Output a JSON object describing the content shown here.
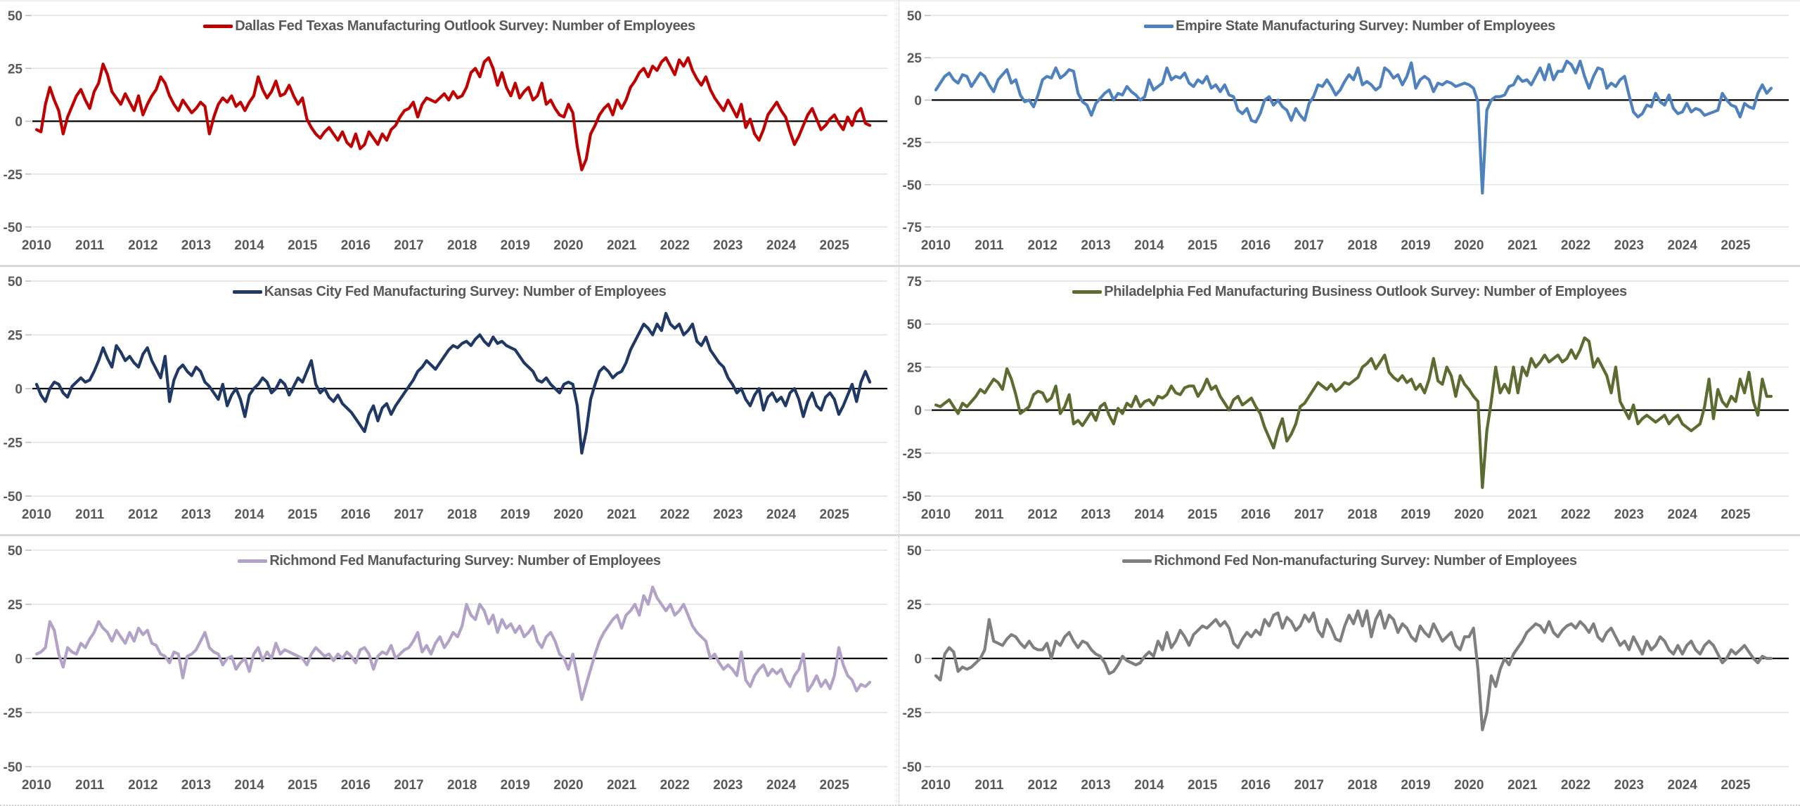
{
  "figure": {
    "description": "Six regional Federal Reserve survey panels, employment indexes, monthly, 2010 through 2025",
    "grid": "2 columns x 3 rows",
    "x_axis_years": [
      2010,
      2011,
      2012,
      2013,
      2014,
      2015,
      2016,
      2017,
      2018,
      2019,
      2020,
      2021,
      2022,
      2023,
      2024,
      2025
    ]
  },
  "styles": {
    "axis_text_color": "#595959",
    "grid_color": "#e2e2e2",
    "tick_color": "#bfbfbf",
    "zero_line_color": "#000000",
    "divider_color": "#d9d9d9",
    "background": "#ffffff"
  },
  "chart_data": [
    {
      "type": "line",
      "title": "Dallas Fed Texas Manufacturing Outlook Survey: Number of Employees",
      "color": "#C00000",
      "y_min": -50,
      "y_max": 50,
      "y_tick_step": 25,
      "y_tick_labels": [
        "50",
        "25",
        "0",
        "-25",
        "-50"
      ],
      "x_start_year": 2010,
      "x_end_year": 2025,
      "frequency": "monthly",
      "legend_position": "top-center",
      "grid": "horizontal-light",
      "values": [
        -4,
        -5,
        8,
        16,
        10,
        5,
        -6,
        2,
        7,
        12,
        15,
        10,
        6,
        14,
        18,
        27,
        22,
        14,
        11,
        8,
        13,
        9,
        5,
        12,
        3,
        8,
        12,
        15,
        21,
        18,
        12,
        8,
        5,
        10,
        7,
        4,
        6,
        9,
        7,
        -6,
        2,
        8,
        11,
        9,
        12,
        7,
        9,
        5,
        9,
        12,
        21,
        15,
        11,
        14,
        19,
        12,
        13,
        17,
        12,
        8,
        11,
        1,
        -3,
        -6,
        -8,
        -5,
        -3,
        -6,
        -9,
        -5,
        -10,
        -12,
        -6,
        -13,
        -11,
        -5,
        -8,
        -11,
        -6,
        -9,
        -4,
        -2,
        2,
        5,
        6,
        9,
        2,
        8,
        11,
        10,
        9,
        11,
        13,
        10,
        14,
        11,
        12,
        16,
        23,
        25,
        21,
        28,
        30,
        25,
        17,
        23,
        16,
        12,
        18,
        11,
        14,
        16,
        10,
        12,
        18,
        8,
        10,
        6,
        3,
        2,
        8,
        4,
        -12,
        -23,
        -18,
        -6,
        -2,
        3,
        6,
        8,
        3,
        10,
        6,
        10,
        16,
        19,
        23,
        25,
        21,
        26,
        24,
        28,
        30,
        26,
        22,
        29,
        26,
        30,
        24,
        20,
        17,
        21,
        15,
        11,
        8,
        5,
        10,
        6,
        2,
        8,
        -3,
        1,
        -6,
        -9,
        -4,
        3,
        6,
        9,
        5,
        2,
        -5,
        -11,
        -7,
        -2,
        3,
        6,
        1,
        -4,
        -2,
        1,
        3,
        -1,
        -4,
        2,
        -2,
        4,
        6,
        -1,
        -2
      ]
    },
    {
      "type": "line",
      "title": "Empire State Manufacturing Survey: Number of Employees",
      "color": "#4E81BD",
      "y_min": -75,
      "y_max": 50,
      "y_tick_step": 25,
      "y_tick_labels": [
        "50",
        "25",
        "0",
        "-25",
        "-50",
        "-75"
      ],
      "x_start_year": 2010,
      "x_end_year": 2025,
      "frequency": "monthly",
      "legend_position": "top-center",
      "grid": "horizontal-light",
      "values": [
        6,
        10,
        14,
        16,
        12,
        10,
        15,
        14,
        8,
        12,
        16,
        14,
        9,
        5,
        12,
        15,
        18,
        10,
        12,
        3,
        -1,
        0,
        -4,
        3,
        12,
        14,
        13,
        19,
        13,
        15,
        18,
        17,
        4,
        -1,
        -3,
        -9,
        -2,
        1,
        4,
        6,
        0,
        4,
        3,
        8,
        5,
        3,
        0,
        2,
        12,
        6,
        8,
        10,
        19,
        12,
        14,
        13,
        16,
        10,
        8,
        12,
        10,
        14,
        7,
        9,
        5,
        9,
        3,
        2,
        -6,
        -8,
        -5,
        -12,
        -13,
        -8,
        0,
        2,
        -3,
        0,
        -4,
        -6,
        -12,
        -5,
        -9,
        -12,
        -2,
        2,
        9,
        8,
        12,
        8,
        3,
        6,
        11,
        15,
        12,
        19,
        9,
        11,
        9,
        6,
        8,
        19,
        17,
        13,
        15,
        9,
        14,
        22,
        7,
        12,
        14,
        12,
        5,
        10,
        9,
        11,
        10,
        8,
        9,
        10,
        9,
        7,
        -1,
        -55,
        -6,
        0,
        2,
        2,
        3,
        8,
        9,
        14,
        11,
        12,
        9,
        14,
        19,
        12,
        21,
        12,
        17,
        17,
        23,
        21,
        16,
        23,
        14,
        7,
        14,
        19,
        18,
        7,
        10,
        8,
        12,
        14,
        3,
        -7,
        -10,
        -8,
        -3,
        -4,
        4,
        -1,
        -3,
        3,
        -5,
        -8,
        -7,
        -2,
        -7,
        -5,
        -6,
        -9,
        -8,
        -7,
        -6,
        4,
        0,
        -3,
        -4,
        -10,
        -2,
        -4,
        -5,
        4,
        9,
        4,
        7
      ]
    },
    {
      "type": "line",
      "title": "Kansas City Fed Manufacturing Survey: Number of Employees",
      "color": "#1F3864",
      "y_min": -50,
      "y_max": 50,
      "y_tick_step": 25,
      "y_tick_labels": [
        "50",
        "25",
        "0",
        "-25",
        "-50"
      ],
      "x_start_year": 2010,
      "x_end_year": 2025,
      "frequency": "monthly",
      "legend_position": "top-center",
      "grid": "horizontal-light",
      "values": [
        2,
        -3,
        -6,
        0,
        3,
        2,
        -2,
        -4,
        1,
        3,
        5,
        3,
        4,
        8,
        13,
        19,
        14,
        10,
        20,
        17,
        13,
        15,
        12,
        10,
        16,
        19,
        13,
        9,
        5,
        15,
        -6,
        4,
        9,
        11,
        8,
        6,
        10,
        8,
        3,
        1,
        -2,
        -5,
        2,
        -8,
        -3,
        0,
        -5,
        -13,
        -3,
        0,
        2,
        5,
        3,
        -2,
        0,
        4,
        2,
        -3,
        1,
        5,
        3,
        8,
        13,
        2,
        -2,
        0,
        -4,
        -6,
        -3,
        -7,
        -9,
        -11,
        -14,
        -17,
        -20,
        -12,
        -8,
        -15,
        -9,
        -7,
        -12,
        -8,
        -5,
        -2,
        1,
        4,
        8,
        10,
        13,
        11,
        9,
        12,
        15,
        18,
        20,
        19,
        21,
        22,
        20,
        23,
        25,
        22,
        20,
        24,
        21,
        22,
        20,
        19,
        18,
        15,
        12,
        10,
        8,
        4,
        3,
        5,
        2,
        0,
        -2,
        2,
        3,
        2,
        -8,
        -30,
        -20,
        -5,
        2,
        8,
        10,
        8,
        5,
        7,
        8,
        12,
        18,
        22,
        26,
        30,
        28,
        25,
        30,
        27,
        35,
        30,
        28,
        30,
        25,
        27,
        30,
        22,
        20,
        24,
        18,
        15,
        12,
        10,
        5,
        2,
        -2,
        0,
        -5,
        -8,
        -3,
        0,
        -10,
        -4,
        -2,
        -6,
        -4,
        -8,
        -2,
        0,
        -5,
        -13,
        -6,
        -2,
        -8,
        -10,
        -4,
        -2,
        -5,
        -12,
        -8,
        -3,
        2,
        -6,
        3,
        8,
        3
      ]
    },
    {
      "type": "line",
      "title": "Philadelphia Fed Manufacturing Business Outlook Survey: Number of Employees",
      "color": "#5C6B30",
      "y_min": -50,
      "y_max": 75,
      "y_tick_step": 25,
      "y_tick_labels": [
        "75",
        "50",
        "25",
        "0",
        "-25",
        "-50"
      ],
      "x_start_year": 2010,
      "x_end_year": 2025,
      "frequency": "monthly",
      "legend_position": "top-center",
      "grid": "horizontal-light",
      "values": [
        3,
        2,
        4,
        6,
        2,
        -2,
        4,
        2,
        5,
        8,
        12,
        10,
        14,
        18,
        16,
        12,
        24,
        18,
        9,
        -2,
        0,
        2,
        9,
        11,
        10,
        5,
        7,
        14,
        -2,
        2,
        9,
        -8,
        -6,
        -9,
        -5,
        -1,
        -6,
        2,
        4,
        -3,
        -8,
        1,
        -2,
        4,
        2,
        8,
        2,
        5,
        6,
        3,
        8,
        7,
        9,
        14,
        10,
        9,
        13,
        14,
        14,
        8,
        12,
        18,
        12,
        14,
        8,
        4,
        0,
        6,
        8,
        3,
        5,
        7,
        2,
        -2,
        -10,
        -16,
        -22,
        -12,
        -5,
        -18,
        -14,
        -8,
        2,
        4,
        8,
        12,
        16,
        14,
        12,
        15,
        11,
        13,
        16,
        15,
        17,
        19,
        25,
        27,
        30,
        24,
        28,
        32,
        22,
        19,
        17,
        20,
        16,
        18,
        12,
        15,
        10,
        18,
        30,
        17,
        15,
        25,
        20,
        8,
        20,
        15,
        12,
        8,
        5,
        -45,
        -12,
        5,
        25,
        10,
        15,
        10,
        25,
        10,
        25,
        20,
        30,
        25,
        28,
        32,
        28,
        30,
        32,
        28,
        30,
        35,
        30,
        35,
        42,
        40,
        25,
        30,
        25,
        20,
        10,
        25,
        5,
        0,
        -5,
        3,
        -8,
        -5,
        -3,
        -5,
        -7,
        -5,
        -3,
        -8,
        -5,
        -3,
        -8,
        -10,
        -12,
        -10,
        -8,
        2,
        18,
        -5,
        12,
        5,
        2,
        8,
        5,
        18,
        10,
        22,
        5,
        -3,
        18,
        8,
        8
      ]
    },
    {
      "type": "line",
      "title": "Richmond Fed Manufacturing Survey: Number of Employees",
      "color": "#B3A2C7",
      "y_min": -50,
      "y_max": 50,
      "y_tick_step": 25,
      "y_tick_labels": [
        "50",
        "25",
        "0",
        "-25",
        "-50"
      ],
      "x_start_year": 2010,
      "x_end_year": 2025,
      "frequency": "monthly",
      "legend_position": "top-center",
      "grid": "horizontal-light",
      "values": [
        2,
        3,
        5,
        17,
        13,
        2,
        -4,
        5,
        3,
        2,
        7,
        5,
        9,
        12,
        17,
        14,
        12,
        8,
        13,
        10,
        7,
        12,
        8,
        14,
        11,
        13,
        7,
        6,
        2,
        1,
        -2,
        3,
        2,
        -9,
        1,
        2,
        4,
        8,
        12,
        5,
        3,
        2,
        -3,
        0,
        1,
        -5,
        -2,
        0,
        -6,
        2,
        5,
        -1,
        3,
        0,
        7,
        2,
        4,
        3,
        2,
        1,
        0,
        -3,
        2,
        5,
        3,
        1,
        2,
        -1,
        2,
        0,
        3,
        1,
        -2,
        4,
        5,
        2,
        -5,
        1,
        3,
        2,
        6,
        0,
        2,
        4,
        5,
        8,
        12,
        3,
        6,
        2,
        7,
        10,
        5,
        8,
        12,
        10,
        15,
        25,
        20,
        18,
        25,
        22,
        16,
        20,
        12,
        18,
        14,
        16,
        12,
        15,
        10,
        12,
        15,
        8,
        5,
        10,
        12,
        8,
        2,
        0,
        -5,
        2,
        -8,
        -19,
        -12,
        -5,
        2,
        8,
        12,
        15,
        18,
        20,
        14,
        20,
        22,
        25,
        20,
        29,
        25,
        33,
        28,
        25,
        22,
        25,
        20,
        22,
        25,
        20,
        15,
        12,
        10,
        8,
        0,
        2,
        -2,
        -5,
        -3,
        -5,
        -8,
        3,
        -10,
        -13,
        -8,
        -5,
        -3,
        -8,
        -5,
        -7,
        -5,
        -10,
        -13,
        -8,
        -5,
        2,
        -15,
        -12,
        -8,
        -13,
        -10,
        -14,
        -8,
        5,
        -3,
        -8,
        -10,
        -15,
        -12,
        -13,
        -11
      ]
    },
    {
      "type": "line",
      "title": "Richmond Fed Non-manufacturing Survey: Number of Employees",
      "color": "#7F7F7F",
      "y_min": -50,
      "y_max": 50,
      "y_tick_step": 25,
      "y_tick_labels": [
        "50",
        "25",
        "0",
        "-25",
        "-50"
      ],
      "x_start_year": 2010,
      "x_end_year": 2025,
      "frequency": "monthly",
      "legend_position": "top-center",
      "grid": "horizontal-light",
      "values": [
        -8,
        -10,
        2,
        5,
        3,
        -6,
        -4,
        -5,
        -4,
        -2,
        0,
        4,
        18,
        8,
        7,
        6,
        9,
        11,
        10,
        7,
        5,
        8,
        5,
        4,
        4,
        7,
        0,
        8,
        6,
        10,
        12,
        8,
        5,
        8,
        7,
        4,
        2,
        1,
        -2,
        -7,
        -6,
        -3,
        1,
        -1,
        -2,
        -3,
        -2,
        1,
        3,
        1,
        8,
        4,
        12,
        5,
        8,
        13,
        10,
        6,
        11,
        13,
        15,
        14,
        16,
        18,
        15,
        17,
        14,
        7,
        5,
        9,
        12,
        10,
        13,
        11,
        18,
        15,
        20,
        21,
        14,
        19,
        17,
        13,
        15,
        20,
        17,
        21,
        13,
        10,
        18,
        14,
        9,
        8,
        15,
        20,
        16,
        22,
        15,
        22,
        10,
        18,
        22,
        14,
        20,
        18,
        12,
        16,
        14,
        10,
        8,
        15,
        12,
        10,
        16,
        12,
        8,
        10,
        12,
        6,
        4,
        10,
        10,
        14,
        -5,
        -33,
        -25,
        -8,
        -13,
        -5,
        0,
        -3,
        2,
        5,
        8,
        12,
        14,
        16,
        15,
        12,
        17,
        12,
        10,
        13,
        15,
        16,
        14,
        17,
        15,
        12,
        16,
        10,
        8,
        12,
        14,
        10,
        6,
        8,
        4,
        10,
        6,
        2,
        8,
        4,
        6,
        10,
        8,
        4,
        2,
        6,
        2,
        6,
        8,
        4,
        2,
        6,
        8,
        6,
        2,
        -2,
        0,
        4,
        2,
        4,
        6,
        3,
        0,
        -2,
        1,
        0,
        0
      ]
    }
  ]
}
